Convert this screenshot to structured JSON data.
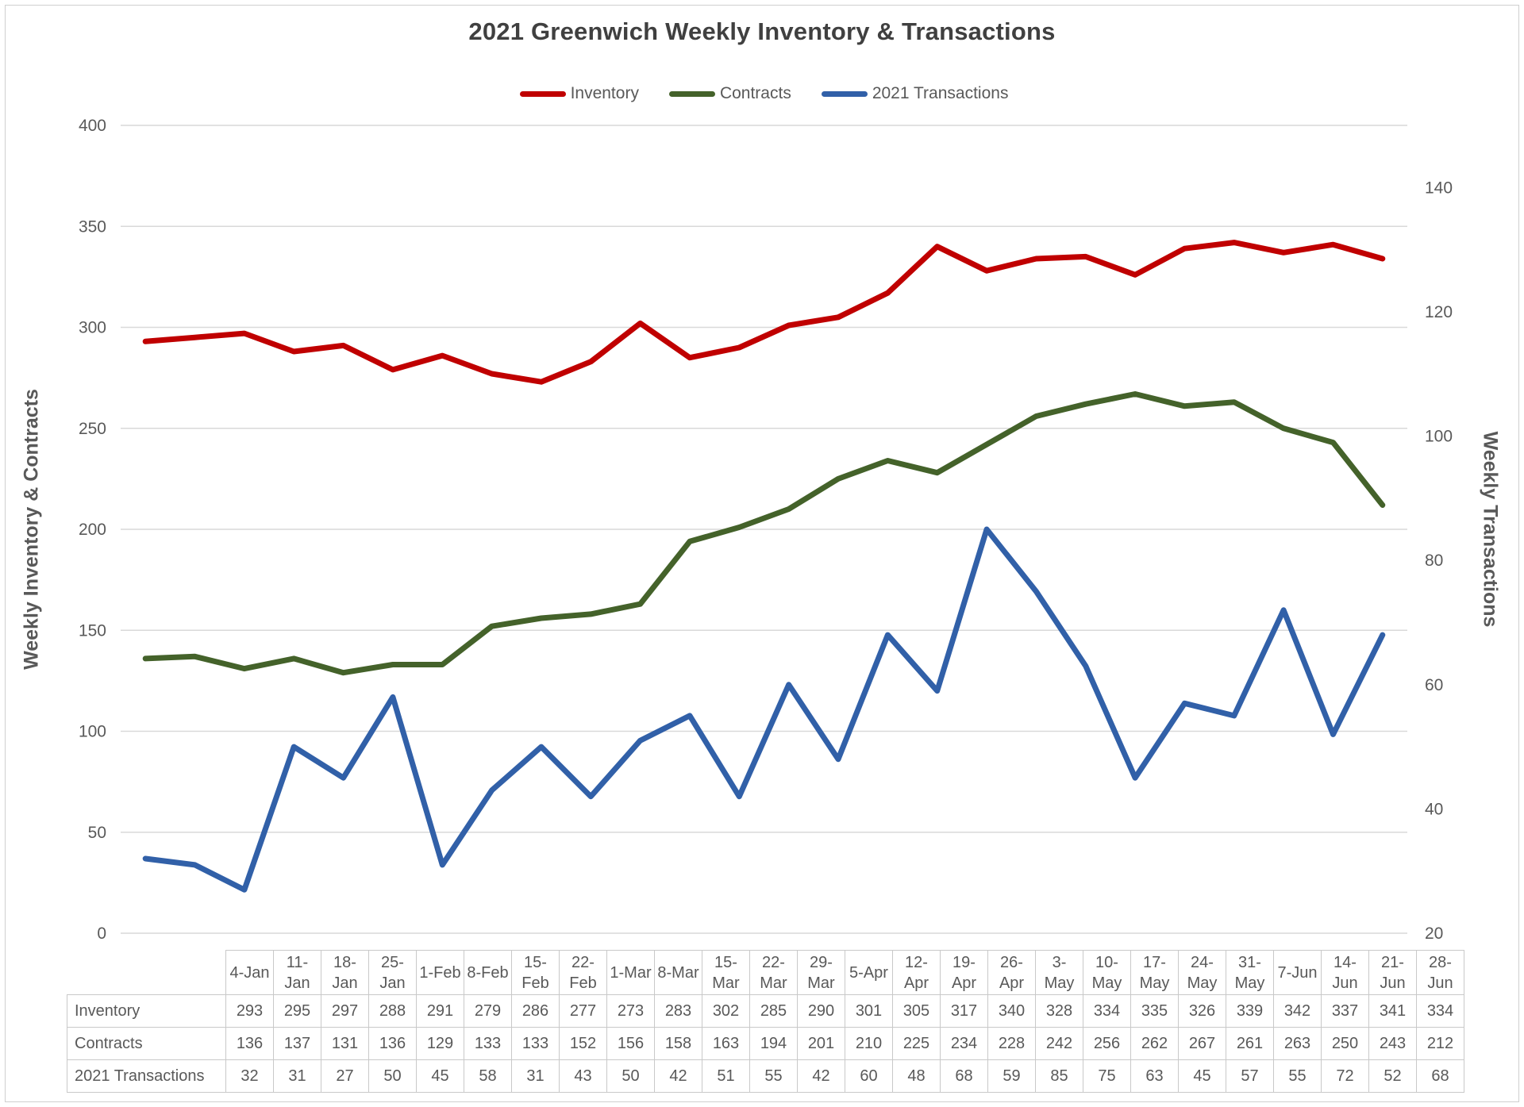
{
  "title": "2021 Greenwich Weekly Inventory & Transactions",
  "chart_data": {
    "type": "line",
    "title": "2021 Greenwich Weekly Inventory & Transactions",
    "categories": [
      "4-Jan",
      "11-Jan",
      "18-Jan",
      "25-Jan",
      "1-Feb",
      "8-Feb",
      "15-Feb",
      "22-Feb",
      "1-Mar",
      "8-Mar",
      "15-Mar",
      "22-Mar",
      "29-Mar",
      "5-Apr",
      "12-Apr",
      "19-Apr",
      "26-Apr",
      "3-May",
      "10-May",
      "17-May",
      "24-May",
      "31-May",
      "7-Jun",
      "14-Jun",
      "21-Jun",
      "28-Jun"
    ],
    "series": [
      {
        "name": "Inventory",
        "axis": "left",
        "color": "#c00000",
        "values": [
          293,
          295,
          297,
          288,
          291,
          279,
          286,
          277,
          273,
          283,
          302,
          285,
          290,
          301,
          305,
          317,
          340,
          328,
          334,
          335,
          326,
          339,
          342,
          337,
          341,
          334
        ]
      },
      {
        "name": "Contracts",
        "axis": "left",
        "color": "#44622a",
        "values": [
          136,
          137,
          131,
          136,
          129,
          133,
          133,
          152,
          156,
          158,
          163,
          194,
          201,
          210,
          225,
          234,
          228,
          242,
          256,
          262,
          267,
          261,
          263,
          250,
          243,
          212
        ]
      },
      {
        "name": "2021 Transactions",
        "axis": "right",
        "color": "#3160a8",
        "values": [
          32,
          31,
          27,
          50,
          45,
          58,
          31,
          43,
          50,
          42,
          51,
          55,
          42,
          60,
          48,
          68,
          59,
          85,
          75,
          63,
          45,
          57,
          55,
          72,
          52,
          68
        ]
      }
    ],
    "left_axis": {
      "title": "Weekly Inventory  & Contracts",
      "min": 0,
      "max": 400,
      "tick_step": 50
    },
    "right_axis": {
      "title": "Weekly Transactions",
      "min": 20,
      "max": 150,
      "tick_step": 20,
      "last_label": 140
    },
    "grid": true,
    "legend_position": "top",
    "gridline_color": "#d9d9d9",
    "tick_label_color": "#595959"
  },
  "table": {
    "corner_label": ""
  }
}
